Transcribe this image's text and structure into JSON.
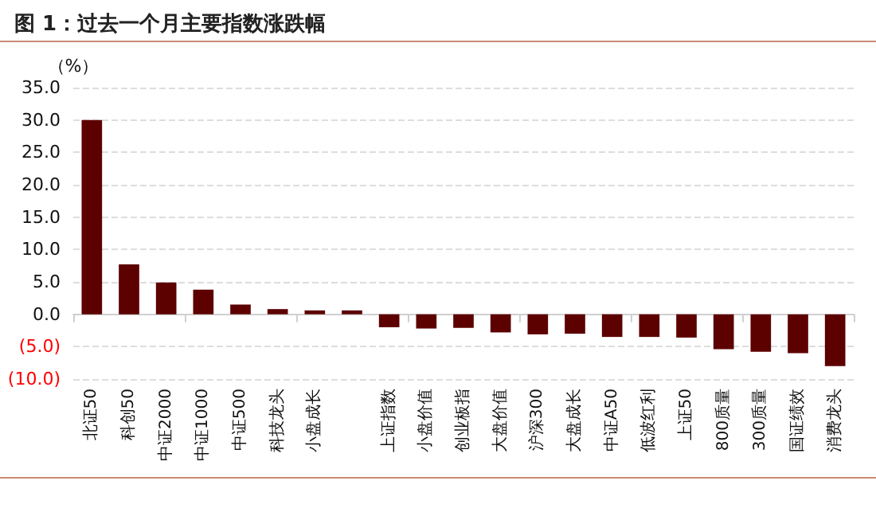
{
  "chart_data": {
    "type": "bar",
    "title": "图 1：过去一个月主要指数涨跌幅",
    "ylabel": "（%）",
    "categories": [
      "北证50",
      "科创50",
      "中证2000",
      "中证1000",
      "中证500",
      "科技龙头",
      "小盘成长",
      null,
      "上证指数",
      "小盘价值",
      "创业板指",
      "大盘价值",
      "沪深300",
      "大盘成长",
      "中证A50",
      "低波红利",
      "上证50",
      "800质量",
      "300质量",
      "国证绩效",
      "消费龙头"
    ],
    "values": [
      30.0,
      7.7,
      4.9,
      3.8,
      1.5,
      0.8,
      0.6,
      0.6,
      -2.0,
      -2.2,
      -2.1,
      -2.8,
      -3.1,
      -3.0,
      -3.5,
      -3.5,
      -3.6,
      -5.4,
      -5.8,
      -6.0,
      -8.0
    ],
    "color": "#5c0000",
    "ylim": [
      -10,
      35
    ],
    "yticks": [
      {
        "value": -10,
        "label": "(10.0)"
      },
      {
        "value": -5,
        "label": "(5.0)"
      },
      {
        "value": 0,
        "label": "0.0"
      },
      {
        "value": 5,
        "label": "5.0"
      },
      {
        "value": 10,
        "label": "10.0"
      },
      {
        "value": 15,
        "label": "15.0"
      },
      {
        "value": 20,
        "label": "20.0"
      },
      {
        "value": 25,
        "label": "25.0"
      },
      {
        "value": 30,
        "label": "30.0"
      },
      {
        "value": 35,
        "label": "35.0"
      }
    ],
    "grid": "y"
  }
}
